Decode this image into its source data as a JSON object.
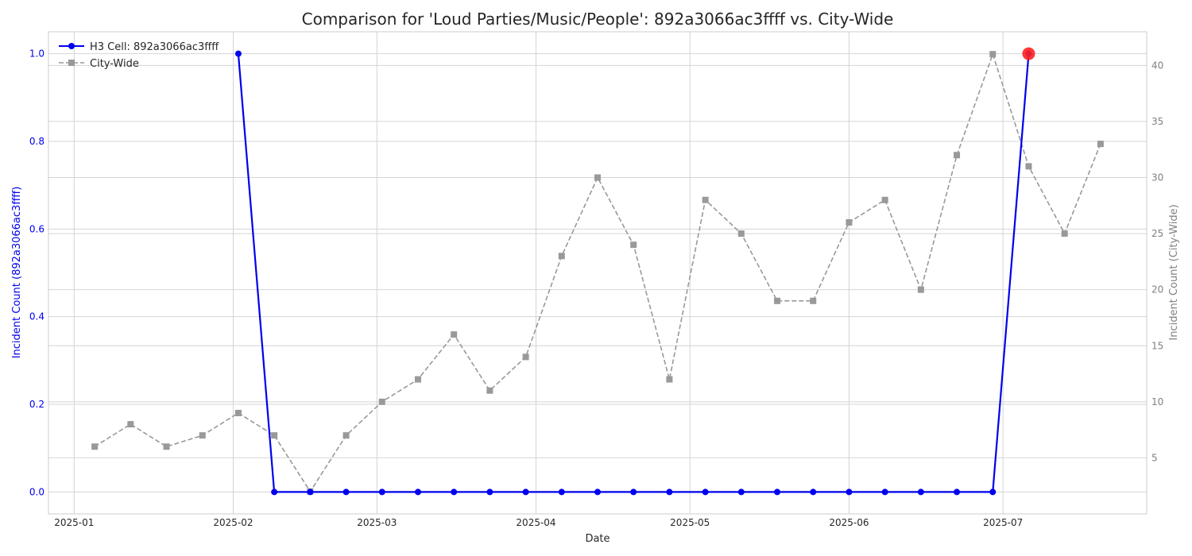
{
  "chart_data": {
    "type": "line",
    "title": "Comparison for 'Loud Parties/Music/People': 892a3066ac3ffff vs. City-Wide",
    "xlabel": "Date",
    "ylabel_left": "Incident Count (892a3066ac3ffff)",
    "ylabel_right": "Incident Count (City-Wide)",
    "x_ticks": [
      "2025-01",
      "2025-02",
      "2025-03",
      "2025-04",
      "2025-05",
      "2025-06",
      "2025-07"
    ],
    "y_left_ticks": [
      "0.0",
      "0.2",
      "0.4",
      "0.6",
      "0.8",
      "1.0"
    ],
    "y_right_ticks": [
      "5",
      "10",
      "15",
      "20",
      "25",
      "30",
      "35",
      "40"
    ],
    "xlim": [
      "2024-12-27",
      "2025-07-29"
    ],
    "ylim_left": [
      -0.05,
      1.05
    ],
    "ylim_right": [
      0,
      43
    ],
    "grid": true,
    "legend_position": "top-left",
    "series": [
      {
        "name": "H3 Cell: 892a3066ac3ffff",
        "axis": "left",
        "color": "#0000ee",
        "style": "solid",
        "marker": "circle",
        "points": [
          {
            "x": "2025-02-02",
            "y": 1
          },
          {
            "x": "2025-02-09",
            "y": 0
          },
          {
            "x": "2025-02-16",
            "y": 0
          },
          {
            "x": "2025-02-23",
            "y": 0
          },
          {
            "x": "2025-03-02",
            "y": 0
          },
          {
            "x": "2025-03-09",
            "y": 0
          },
          {
            "x": "2025-03-16",
            "y": 0
          },
          {
            "x": "2025-03-23",
            "y": 0
          },
          {
            "x": "2025-03-30",
            "y": 0
          },
          {
            "x": "2025-04-06",
            "y": 0
          },
          {
            "x": "2025-04-13",
            "y": 0
          },
          {
            "x": "2025-04-20",
            "y": 0
          },
          {
            "x": "2025-04-27",
            "y": 0
          },
          {
            "x": "2025-05-04",
            "y": 0
          },
          {
            "x": "2025-05-11",
            "y": 0
          },
          {
            "x": "2025-05-18",
            "y": 0
          },
          {
            "x": "2025-05-25",
            "y": 0
          },
          {
            "x": "2025-06-01",
            "y": 0
          },
          {
            "x": "2025-06-08",
            "y": 0
          },
          {
            "x": "2025-06-15",
            "y": 0
          },
          {
            "x": "2025-06-22",
            "y": 0
          },
          {
            "x": "2025-06-29",
            "y": 0
          },
          {
            "x": "2025-07-06",
            "y": 1
          }
        ]
      },
      {
        "name": "City-Wide",
        "axis": "right",
        "color": "#999999",
        "style": "dashed",
        "marker": "square",
        "points": [
          {
            "x": "2025-01-05",
            "y": 6
          },
          {
            "x": "2025-01-12",
            "y": 8
          },
          {
            "x": "2025-01-19",
            "y": 6
          },
          {
            "x": "2025-01-26",
            "y": 7
          },
          {
            "x": "2025-02-02",
            "y": 9
          },
          {
            "x": "2025-02-09",
            "y": 7
          },
          {
            "x": "2025-02-16",
            "y": 2
          },
          {
            "x": "2025-02-23",
            "y": 7
          },
          {
            "x": "2025-03-02",
            "y": 10
          },
          {
            "x": "2025-03-09",
            "y": 12
          },
          {
            "x": "2025-03-16",
            "y": 16
          },
          {
            "x": "2025-03-23",
            "y": 11
          },
          {
            "x": "2025-03-30",
            "y": 14
          },
          {
            "x": "2025-04-06",
            "y": 23
          },
          {
            "x": "2025-04-13",
            "y": 30
          },
          {
            "x": "2025-04-20",
            "y": 24
          },
          {
            "x": "2025-04-27",
            "y": 12
          },
          {
            "x": "2025-05-04",
            "y": 28
          },
          {
            "x": "2025-05-11",
            "y": 25
          },
          {
            "x": "2025-05-18",
            "y": 19
          },
          {
            "x": "2025-05-25",
            "y": 19
          },
          {
            "x": "2025-06-01",
            "y": 26
          },
          {
            "x": "2025-06-08",
            "y": 28
          },
          {
            "x": "2025-06-15",
            "y": 20
          },
          {
            "x": "2025-06-22",
            "y": 32
          },
          {
            "x": "2025-06-29",
            "y": 41
          },
          {
            "x": "2025-07-06",
            "y": 31
          },
          {
            "x": "2025-07-13",
            "y": 25
          },
          {
            "x": "2025-07-20",
            "y": 33
          }
        ]
      }
    ],
    "highlight": {
      "x": "2025-07-06",
      "y": 1,
      "axis": "left",
      "color": "#ff2020"
    }
  }
}
